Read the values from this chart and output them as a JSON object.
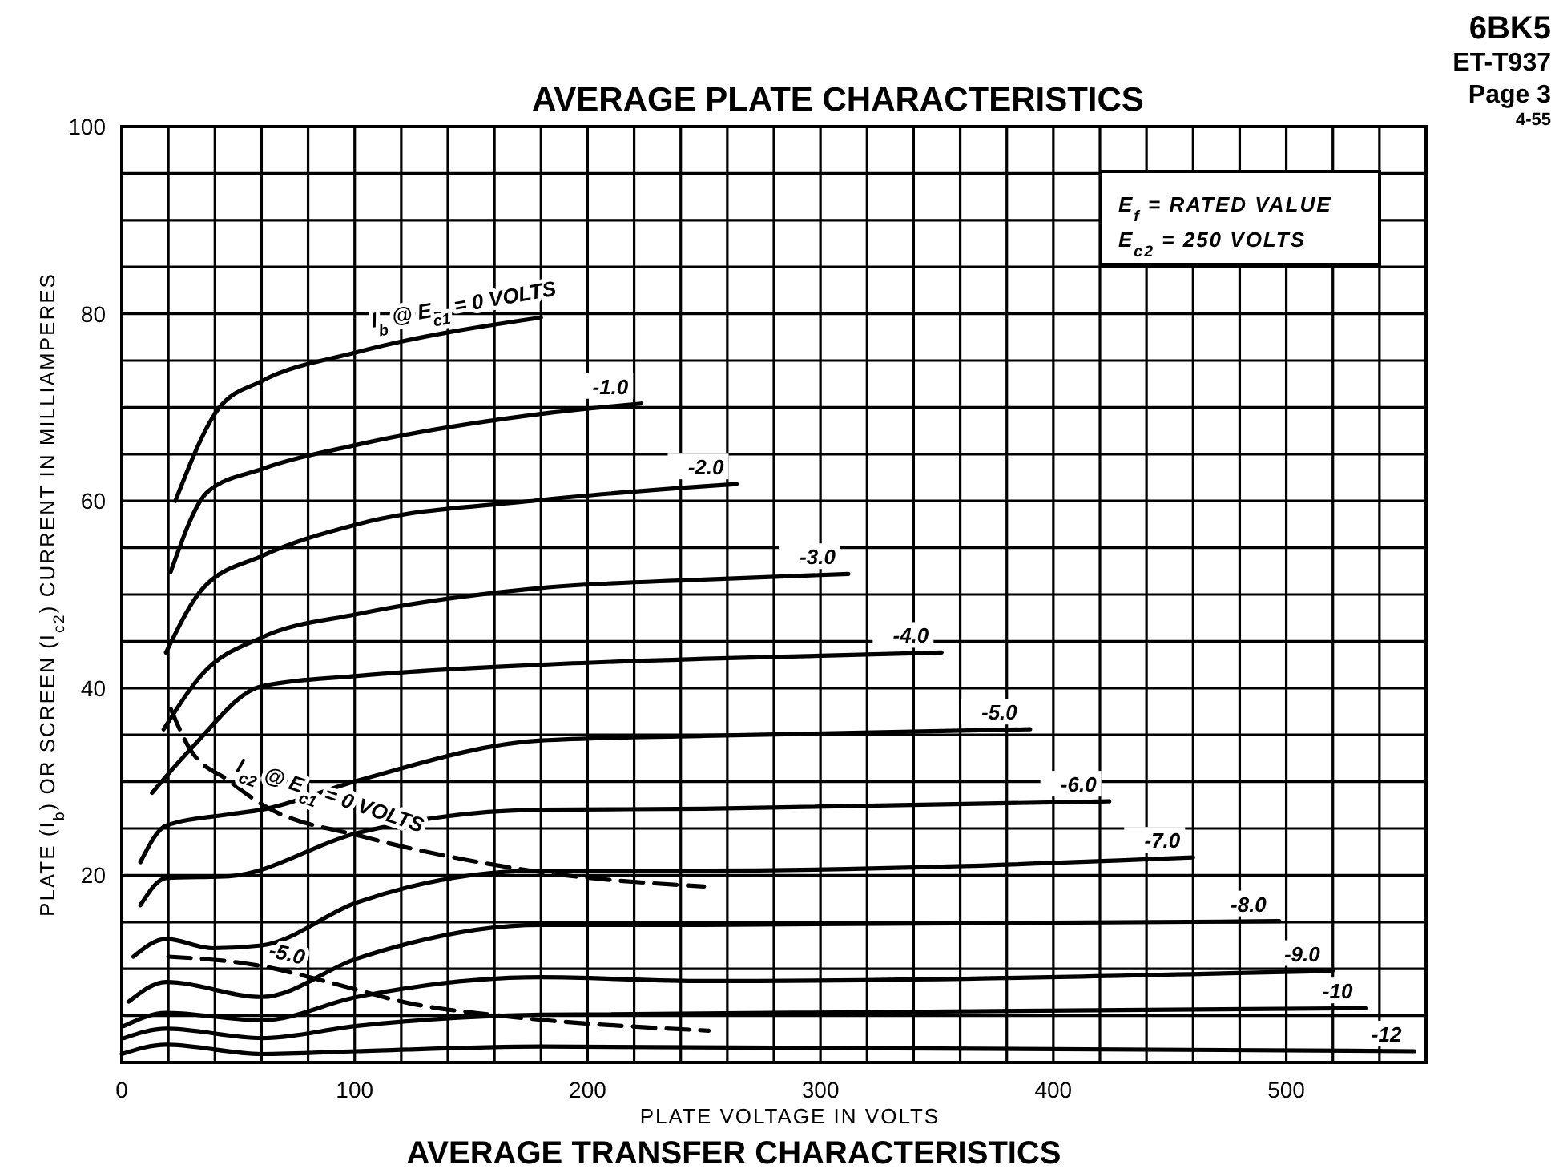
{
  "chart_data": {
    "type": "line",
    "title": "AVERAGE PLATE CHARACTERISTICS",
    "xlabel": "PLATE VOLTAGE IN VOLTS",
    "ylabel": "PLATE (I$_{b}$) OR SCREEN (I$_{c2}$) CURRENT IN MILLIAMPERES",
    "annotations": [
      "6BK5",
      "ET-T937",
      "Page 3",
      "4-55",
      "E$_{f}$ = RATED VALUE",
      "E$_{c2}$ = 250 VOLTS",
      "AVERAGE TRANSFER CHARACTERISTICS"
    ],
    "xlim": [
      0,
      560
    ],
    "xticks": [
      0,
      {
        "value": 20,
        "label": null
      },
      {
        "value": 40,
        "label": null
      },
      {
        "value": 60,
        "label": null
      },
      {
        "value": 80,
        "label": null
      },
      100,
      {
        "value": 120,
        "label": null
      },
      {
        "value": 140,
        "label": null
      },
      {
        "value": 160,
        "label": null
      },
      {
        "value": 180,
        "label": null
      },
      200,
      {
        "value": 220,
        "label": null
      },
      {
        "value": 240,
        "label": null
      },
      {
        "value": 260,
        "label": null
      },
      {
        "value": 280,
        "label": null
      },
      300,
      {
        "value": 320,
        "label": null
      },
      {
        "value": 340,
        "label": null
      },
      {
        "value": 360,
        "label": null
      },
      {
        "value": 380,
        "label": null
      },
      400,
      {
        "value": 420,
        "label": null
      },
      {
        "value": 440,
        "label": null
      },
      {
        "value": 460,
        "label": null
      },
      {
        "value": 480,
        "label": null
      },
      500,
      {
        "value": 520,
        "label": null
      },
      {
        "value": 540,
        "label": null
      }
    ],
    "ylim": [
      0,
      100
    ],
    "yticks": [
      {
        "value": 0,
        "label": null
      },
      {
        "value": 5,
        "label": null
      },
      {
        "value": 10,
        "label": null
      },
      {
        "value": 15,
        "label": null
      },
      20,
      {
        "value": 25,
        "label": null
      },
      {
        "value": 30,
        "label": null
      },
      {
        "value": 35,
        "label": null
      },
      40,
      {
        "value": 45,
        "label": null
      },
      {
        "value": 50,
        "label": null
      },
      {
        "value": 55,
        "label": null
      },
      60,
      {
        "value": 65,
        "label": null
      },
      {
        "value": 70,
        "label": null
      },
      {
        "value": 75,
        "label": null
      },
      80,
      {
        "value": 85,
        "label": null
      },
      {
        "value": 90,
        "label": null
      },
      {
        "value": 95,
        "label": null
      },
      100
    ],
    "grid": true,
    "series": [
      {
        "name": "I$_{b}$ @ E$_{c1}$ = 0 VOLTS",
        "color": "#000000",
        "line_style": "solid",
        "x": [
          23,
          42,
          60,
          101,
          180
        ],
        "values": [
          60,
          70,
          72.8,
          75.9,
          79.6
        ]
      },
      {
        "name": "-1.0",
        "color": "#000000",
        "line_style": "solid",
        "x": [
          21,
          37,
          60,
          101,
          180,
          223
        ],
        "values": [
          52.4,
          61,
          63.4,
          66,
          69.3,
          70.4
        ]
      },
      {
        "name": "-2.0",
        "color": "#000000",
        "line_style": "solid",
        "x": [
          19,
          35,
          60,
          101,
          180,
          264
        ],
        "values": [
          43.8,
          50.7,
          54.1,
          57.5,
          60.1,
          61.8
        ]
      },
      {
        "name": "-3.0",
        "color": "#000000",
        "line_style": "solid",
        "x": [
          18,
          35,
          60,
          101,
          180,
          250,
          312
        ],
        "values": [
          35.6,
          41.6,
          45.4,
          47.9,
          50.7,
          51.6,
          52.2
        ]
      },
      {
        "name": "-4.0",
        "color": "#000000",
        "line_style": "solid",
        "x": [
          13,
          30,
          60,
          101,
          180,
          260,
          352
        ],
        "values": [
          28.8,
          33.6,
          40.2,
          41.3,
          42.5,
          43.2,
          43.8
        ]
      },
      {
        "name": "-5.0",
        "color": "#000000",
        "line_style": "solid",
        "x": [
          8,
          19,
          46,
          60,
          101,
          180,
          250,
          390
        ],
        "values": [
          21.4,
          25.3,
          26.5,
          27,
          30.1,
          34.4,
          34.9,
          35.6
        ]
      },
      {
        "name": "-6.0",
        "color": "#000000",
        "line_style": "solid",
        "x": [
          8,
          19,
          46,
          101,
          180,
          250,
          424
        ],
        "values": [
          16.8,
          19.7,
          19.9,
          24.5,
          27,
          27.1,
          27.9
        ]
      },
      {
        "name": "-7.0",
        "color": "#000000",
        "line_style": "solid",
        "x": [
          5,
          19,
          39,
          60,
          101,
          180,
          250,
          460
        ],
        "values": [
          11.3,
          13.2,
          12.2,
          12.5,
          17.1,
          20.5,
          20.5,
          21.9
        ]
      },
      {
        "name": "-8.0",
        "color": "#000000",
        "line_style": "solid",
        "x": [
          3,
          19,
          60,
          101,
          180,
          250,
          497
        ],
        "values": [
          6.5,
          8.6,
          7,
          11.1,
          14.7,
          14.7,
          15.1
        ]
      },
      {
        "name": "-9.0",
        "color": "#000000",
        "line_style": "solid",
        "x": [
          1,
          19,
          60,
          101,
          180,
          250,
          520
        ],
        "values": [
          3.9,
          5.3,
          4.5,
          7,
          9.1,
          8.7,
          9.8
        ]
      },
      {
        "name": "-10",
        "color": "#000000",
        "line_style": "solid",
        "x": [
          1,
          19,
          60,
          101,
          180,
          534
        ],
        "values": [
          2.6,
          3.6,
          2.6,
          3.9,
          5.1,
          5.8
        ]
      },
      {
        "name": "-12",
        "color": "#000000",
        "line_style": "solid",
        "x": [
          0,
          19,
          60,
          101,
          180,
          555
        ],
        "values": [
          0.9,
          1.9,
          0.9,
          1.2,
          1.7,
          1.2
        ]
      },
      {
        "name": "I$_{c2}$ @ E$_{c1}$ = 0 VOLTS",
        "color": "#000000",
        "line_style": "dashed",
        "x": [
          21,
          29,
          46,
          60,
          104,
          149,
          184,
          250
        ],
        "values": [
          37.8,
          33.6,
          30.1,
          27.6,
          24.1,
          21.6,
          20.2,
          18.8
        ]
      },
      {
        "name": "-5.0",
        "color": "#000000",
        "line_style": "dashed",
        "x": [
          20,
          60,
          87,
          126,
          159,
          252
        ],
        "values": [
          11.3,
          10.3,
          8.7,
          6.2,
          5.1,
          3.4
        ]
      }
    ]
  }
}
